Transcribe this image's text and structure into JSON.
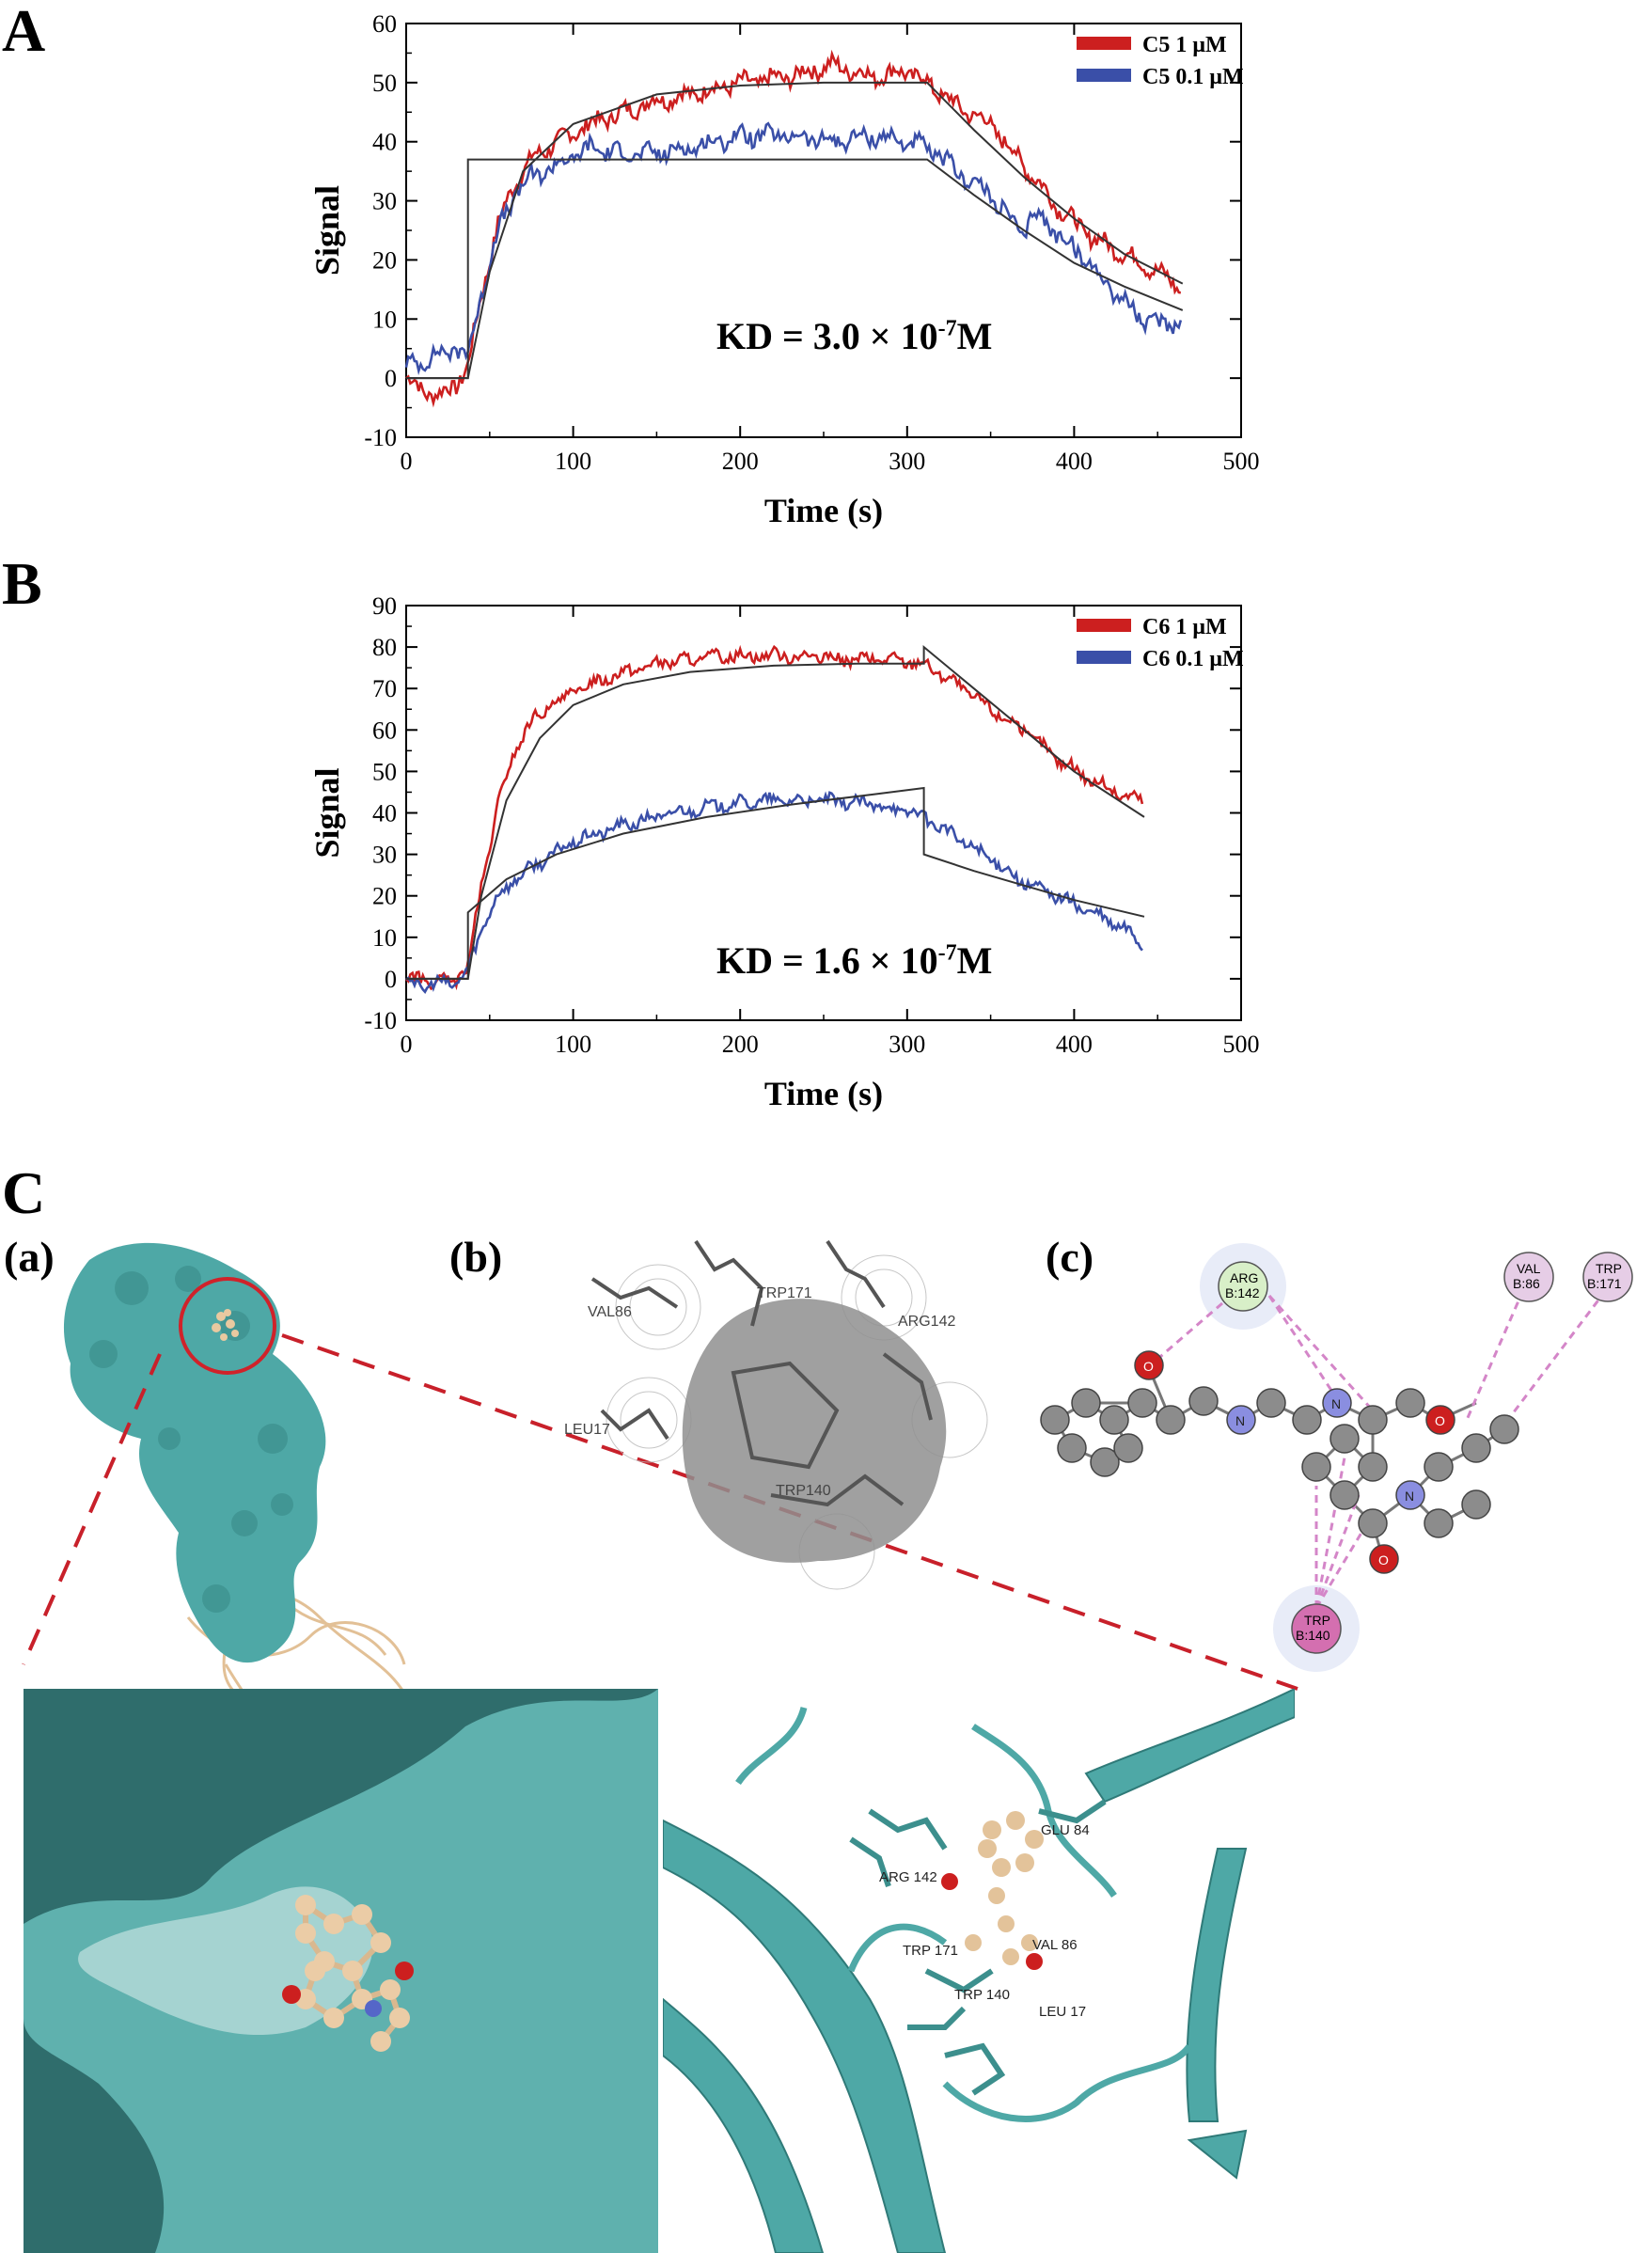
{
  "panels": {
    "a_letter": "A",
    "b_letter": "B",
    "c_letter": "C",
    "c_sub_a": "(a)",
    "c_sub_b": "(b)",
    "c_sub_c": "(c)"
  },
  "annotations": {
    "kd_a_pre": "KD = 3.0 × 10",
    "kd_a_exp": "-7",
    "kd_a_post": "M",
    "kd_b_pre": "KD = 1.6 × 10",
    "kd_b_exp": "-7",
    "kd_b_post": "M"
  },
  "colors": {
    "red": "#cc1f1f",
    "blue": "#3a4fa8",
    "fit": "#333333",
    "teal": "#4ea8a6",
    "teal_dark": "#2f6d6c",
    "tan": "#e9c9a0"
  },
  "residues": {
    "b": [
      "VAL86",
      "TRP171",
      "ARG142",
      "LEU17",
      "TRP140"
    ],
    "c_arg": [
      "ARG",
      "B:142"
    ],
    "c_val": [
      "VAL",
      "B:86"
    ],
    "c_trp171": [
      "TRP",
      "B:171"
    ],
    "c_trp140": [
      "TRP",
      "B:140"
    ],
    "atom_o": "O",
    "atom_n": "N",
    "zoom": [
      "GLU 84",
      "ARG 142",
      "TRP 171",
      "VAL 86",
      "TRP 140",
      "LEU 17"
    ]
  },
  "chart_data": [
    {
      "type": "line",
      "xlabel": "Time (s)",
      "ylabel": "Signal",
      "xlim": [
        0,
        500
      ],
      "ylim": [
        -10,
        60
      ],
      "xticks": [
        0,
        100,
        200,
        300,
        400,
        500
      ],
      "yticks": [
        -10,
        0,
        10,
        20,
        30,
        40,
        50,
        60
      ],
      "legend_position": "top-right",
      "series": [
        {
          "name": "C5  1 μM",
          "color": "red",
          "x": [
            0,
            10,
            20,
            30,
            37,
            45,
            55,
            65,
            75,
            90,
            110,
            130,
            150,
            170,
            200,
            230,
            255,
            280,
            300,
            312,
            330,
            350,
            370,
            390,
            410,
            430,
            450,
            465
          ],
          "y": [
            0,
            -2,
            -3,
            -1,
            2,
            14,
            26,
            33,
            37,
            40,
            43,
            45,
            47,
            48,
            50,
            51,
            53,
            51,
            52,
            50,
            46,
            43,
            36,
            29,
            24,
            21,
            18,
            15
          ]
        },
        {
          "name": "C5  0.1 μM",
          "color": "blue",
          "x": [
            0,
            10,
            20,
            30,
            37,
            45,
            55,
            65,
            75,
            90,
            110,
            130,
            150,
            170,
            200,
            230,
            255,
            280,
            300,
            312,
            330,
            350,
            370,
            375,
            380,
            400,
            420,
            440,
            450,
            465
          ],
          "y": [
            2,
            3,
            4,
            5,
            4,
            14,
            25,
            31,
            34,
            36,
            39,
            38,
            38,
            39,
            41,
            41,
            40,
            41,
            40,
            39,
            35,
            31,
            24,
            28,
            27,
            22,
            16,
            10,
            9,
            10
          ]
        },
        {
          "name": "fit_high",
          "color": "fit",
          "style": "fit",
          "x": [
            0,
            37,
            50,
            70,
            100,
            150,
            200,
            250,
            312,
            340,
            370,
            400,
            430,
            465
          ],
          "y": [
            0,
            0,
            18,
            35,
            43,
            48,
            49.5,
            50,
            50,
            42,
            34,
            27,
            21,
            16
          ]
        },
        {
          "name": "fit_low",
          "color": "fit",
          "style": "fit",
          "x": [
            0,
            37,
            37,
            312,
            340,
            370,
            400,
            430,
            465
          ],
          "y": [
            0,
            0,
            37,
            37,
            31,
            25,
            19.5,
            15.5,
            11.5
          ]
        }
      ]
    },
    {
      "type": "line",
      "xlabel": "Time (s)",
      "ylabel": "Signal",
      "xlim": [
        0,
        500
      ],
      "ylim": [
        -10,
        90
      ],
      "xticks": [
        0,
        100,
        200,
        300,
        400,
        500
      ],
      "yticks": [
        -10,
        0,
        10,
        20,
        30,
        40,
        50,
        60,
        70,
        80,
        90
      ],
      "legend_position": "top-right",
      "series": [
        {
          "name": "C6  1 μM",
          "color": "red",
          "x": [
            0,
            10,
            20,
            30,
            37,
            45,
            55,
            65,
            75,
            90,
            110,
            130,
            150,
            170,
            200,
            230,
            260,
            290,
            310,
            330,
            350,
            370,
            390,
            410,
            430,
            442
          ],
          "y": [
            0,
            0,
            -1,
            0,
            3,
            22,
            42,
            55,
            62,
            67,
            71,
            74,
            76,
            77,
            78,
            78,
            77,
            77,
            76,
            71,
            65,
            60,
            53,
            48,
            44,
            43
          ]
        },
        {
          "name": "C6  0.1 μM",
          "color": "blue",
          "x": [
            0,
            10,
            20,
            30,
            37,
            45,
            55,
            65,
            80,
            100,
            130,
            160,
            190,
            220,
            250,
            280,
            305,
            310,
            330,
            350,
            370,
            390,
            410,
            430,
            442
          ],
          "y": [
            0,
            -2,
            -1,
            -1,
            2,
            12,
            20,
            24,
            28,
            33,
            37,
            40,
            42,
            43,
            43,
            42,
            40,
            39,
            34,
            29,
            23,
            20,
            16,
            12,
            8
          ]
        },
        {
          "name": "fit_high",
          "color": "fit",
          "style": "fit",
          "x": [
            0,
            37,
            45,
            60,
            80,
            100,
            130,
            170,
            220,
            270,
            310,
            310,
            340,
            370,
            400,
            442
          ],
          "y": [
            0,
            0,
            20,
            43,
            58,
            66,
            71,
            74,
            75.5,
            76,
            76,
            80,
            70,
            60,
            50,
            39
          ]
        },
        {
          "name": "fit_low",
          "color": "fit",
          "style": "fit",
          "x": [
            0,
            37,
            37,
            60,
            90,
            130,
            180,
            230,
            280,
            310,
            310,
            340,
            370,
            400,
            442
          ],
          "y": [
            0,
            0,
            16,
            24,
            30,
            35,
            39,
            42,
            44.5,
            46,
            30,
            26,
            22.5,
            19,
            15
          ]
        }
      ]
    }
  ]
}
